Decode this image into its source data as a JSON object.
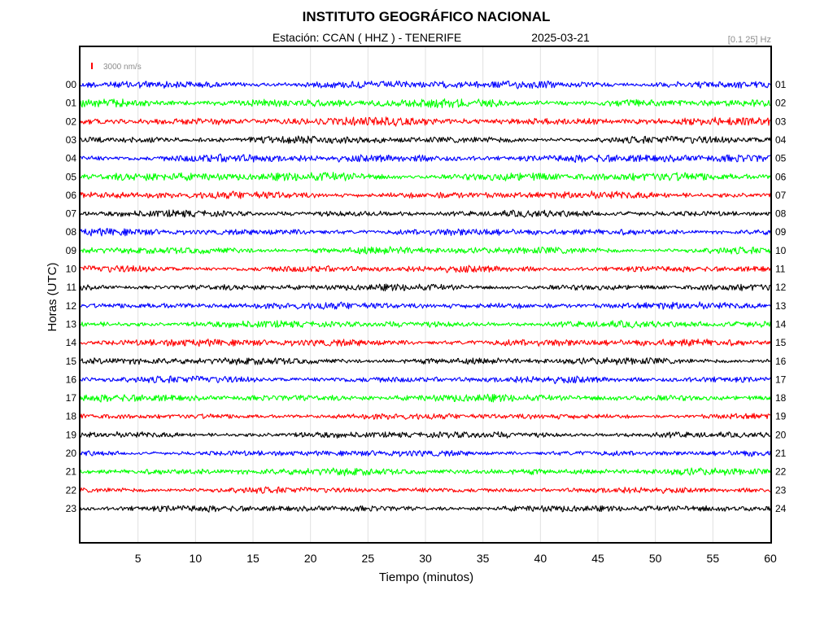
{
  "title": "INSTITUTO GEOGRÁFICO NACIONAL",
  "station_line": "Estación:  CCAN ( HHZ ) - TENERIFE",
  "date": "2025-03-21",
  "filter_band": "[0.1 25] Hz",
  "scale_bar_label": "3000 nm/s",
  "colors": {
    "blue": "#0000ff",
    "green": "#00ff00",
    "red": "#ff0000",
    "black": "#000000",
    "scale_bar": "#ff0000",
    "grid": "#e0e0e0"
  },
  "chart_data": {
    "type": "line",
    "subtype": "helicorder",
    "xlabel": "Tiempo (minutos)",
    "ylabel": "Horas (UTC)",
    "xlim": [
      0,
      60
    ],
    "x_ticks": [
      5,
      10,
      15,
      20,
      25,
      30,
      35,
      40,
      45,
      50,
      55,
      60
    ],
    "grid": "vertical",
    "left_hour_labels": [
      "00",
      "01",
      "02",
      "03",
      "04",
      "05",
      "06",
      "07",
      "08",
      "09",
      "10",
      "11",
      "12",
      "13",
      "14",
      "15",
      "16",
      "17",
      "18",
      "19",
      "20",
      "21",
      "22",
      "23"
    ],
    "right_hour_labels": [
      "01",
      "02",
      "03",
      "04",
      "05",
      "06",
      "07",
      "08",
      "09",
      "10",
      "11",
      "12",
      "13",
      "14",
      "15",
      "16",
      "17",
      "18",
      "19",
      "20",
      "21",
      "22",
      "23",
      "24"
    ],
    "trace_color_cycle": [
      "blue",
      "green",
      "red",
      "black"
    ],
    "relative_amplitude": [
      0.9,
      1.0,
      0.95,
      0.85,
      0.95,
      1.0,
      0.85,
      0.75,
      0.8,
      0.85,
      0.8,
      0.75,
      0.8,
      0.8,
      0.85,
      0.8,
      0.8,
      0.85,
      0.7,
      0.75,
      0.7,
      0.8,
      0.7,
      0.75
    ]
  }
}
